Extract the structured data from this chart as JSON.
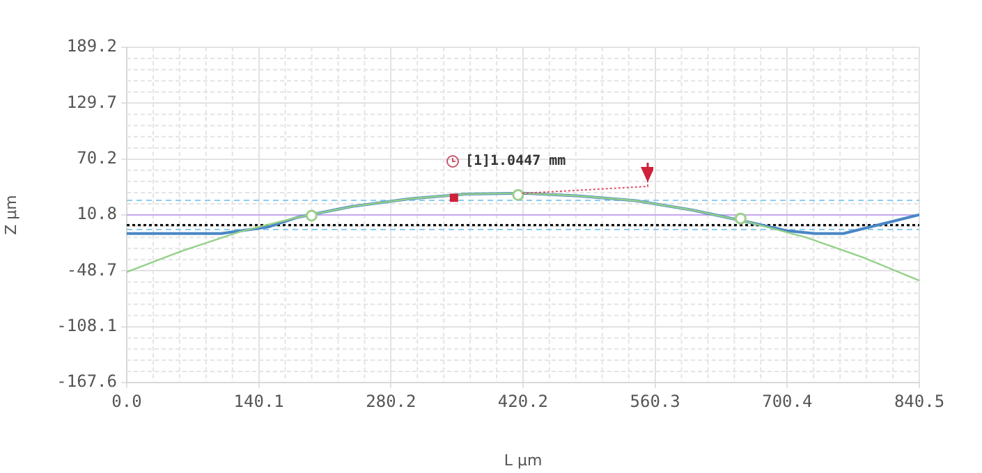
{
  "chart_data": {
    "type": "line",
    "xlabel": "L μm",
    "ylabel": "Z μm",
    "xlim": [
      0,
      840.5
    ],
    "ylim": [
      -167.6,
      189.2
    ],
    "xticks": [
      {
        "value": 0,
        "label": "0.0"
      },
      140.1,
      280.2,
      420.2,
      560.3,
      700.4,
      840.5
    ],
    "yticks": [
      -167.6,
      -108.1,
      -48.7,
      10.8,
      70.2,
      129.7,
      189.2
    ],
    "grid": true,
    "legend": false,
    "line_style": "solid",
    "marker": "none",
    "series": [
      {
        "color": "#4a86c5",
        "x": [
          0,
          100,
          150,
          180,
          240,
          300,
          360,
          420,
          480,
          540,
          600,
          660,
          700,
          730,
          760,
          840.5
        ],
        "values": [
          -9,
          -9,
          -2,
          8,
          20,
          28,
          33,
          34,
          31,
          26,
          16,
          3,
          -6,
          -9,
          -9,
          11
        ]
      },
      {
        "color": "#95d08a",
        "x": [
          0,
          60,
          120,
          180,
          240,
          300,
          360,
          420,
          480,
          540,
          600,
          660,
          720,
          780,
          840.5
        ],
        "values": [
          -50,
          -27,
          -7,
          8,
          20,
          28,
          33,
          34,
          31,
          26,
          16,
          3,
          -13,
          -34,
          -59
        ]
      },
      {
        "type": "scatter",
        "marker": "square",
        "color": "#d0203a",
        "x": [
          347
        ],
        "values": [
          29
        ]
      },
      {
        "type": "scatter",
        "marker": "circle",
        "color": "#9ccf8e",
        "x": [
          196,
          415,
          651
        ],
        "values": [
          10,
          32,
          7
        ]
      }
    ],
    "ref_lines": [
      {
        "axis": "y",
        "value": 26.4,
        "color": "#8ccdf0",
        "line_style": "dashed"
      },
      {
        "axis": "y",
        "value": 10.8,
        "color": "#c6a6ee",
        "line_style": "solid"
      },
      {
        "axis": "y",
        "value": 0,
        "color": "#111111",
        "line_style": "dotted"
      },
      {
        "axis": "y",
        "value": -4.7,
        "color": "#8ccdf0",
        "line_style": "dashed"
      }
    ],
    "annotations": [
      {
        "text": "[1]1.0447 mm",
        "x": 415,
        "y": 32.1
      }
    ]
  }
}
